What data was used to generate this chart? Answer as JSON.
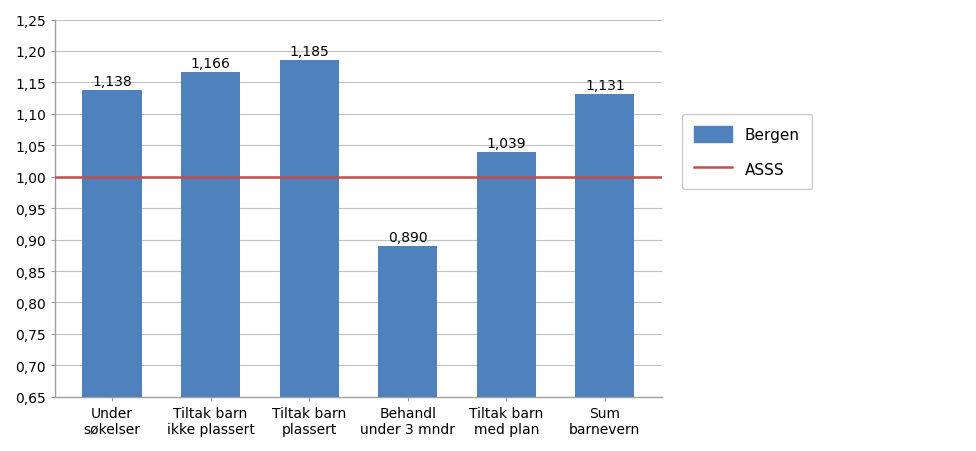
{
  "categories": [
    "Under\nsøkelser",
    "Tiltak barn\nikke plassert",
    "Tiltak barn\nplassert",
    "Behandl\nunder 3 mndr",
    "Tiltak barn\nmed plan",
    "Sum\nbarnevern"
  ],
  "values": [
    1.138,
    1.166,
    1.185,
    0.89,
    1.039,
    1.131
  ],
  "labels": [
    "1,138",
    "1,166",
    "1,185",
    "0,890",
    "1,039",
    "1,131"
  ],
  "bar_color": "#4F81BD",
  "line_color": "#C0504D",
  "line_value": 1.0,
  "ylim": [
    0.65,
    1.25
  ],
  "yticks": [
    0.65,
    0.7,
    0.75,
    0.8,
    0.85,
    0.9,
    0.95,
    1.0,
    1.05,
    1.1,
    1.15,
    1.2,
    1.25
  ],
  "ytick_labels": [
    "0,65",
    "0,70",
    "0,75",
    "0,80",
    "0,85",
    "0,90",
    "0,95",
    "1,00",
    "1,05",
    "1,10",
    "1,15",
    "1,20",
    "1,25"
  ],
  "legend_bergen": "Bergen",
  "legend_asss": "ASSS",
  "background_color": "#FFFFFF",
  "plot_bg_color": "#FFFFFF",
  "grid_color": "#C0C0C0",
  "spine_color": "#A0A0A0",
  "bar_width": 0.6,
  "label_fontsize": 10,
  "tick_fontsize": 10,
  "legend_fontsize": 11
}
